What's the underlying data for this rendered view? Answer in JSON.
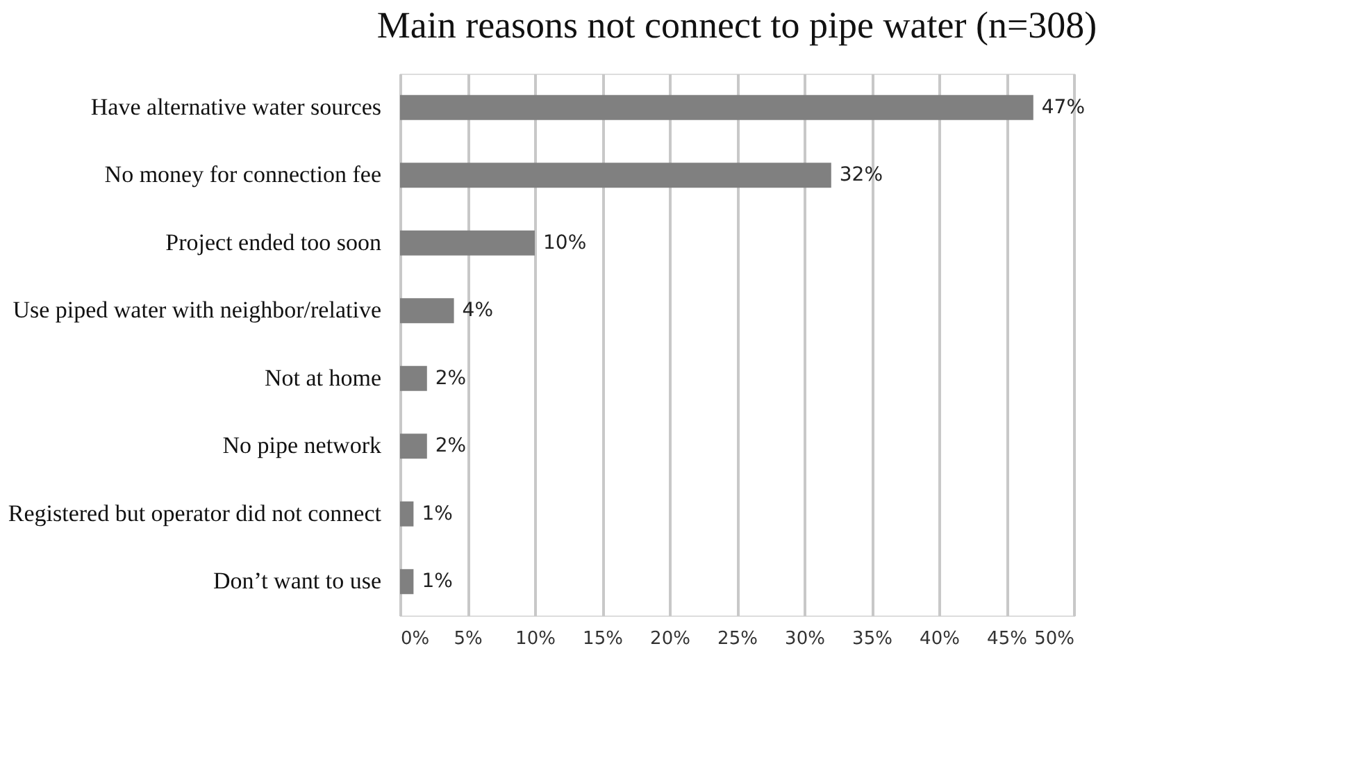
{
  "chart_data": {
    "type": "bar",
    "orientation": "horizontal",
    "title": "Main reasons not connect to pipe water (n=308)",
    "categories": [
      "Have alternative water sources",
      "No money for connection fee",
      "Project ended too soon",
      "Use piped water with neighbor/relative",
      "Not at home",
      "No pipe network",
      "Registered but operator did not connect",
      "Don’t want to use"
    ],
    "values": [
      47,
      32,
      10,
      4,
      2,
      2,
      1,
      1
    ],
    "value_labels": [
      "47%",
      "32%",
      "10%",
      "4%",
      "2%",
      "2%",
      "1%",
      "1%"
    ],
    "color": "#808080",
    "xlim": [
      0,
      50
    ],
    "xticks": [
      {
        "value": 0,
        "label": "0%"
      },
      {
        "value": 5,
        "label": "5%"
      },
      {
        "value": 10,
        "label": "10%"
      },
      {
        "value": 15,
        "label": "15%"
      },
      {
        "value": 20,
        "label": "20%"
      },
      {
        "value": 25,
        "label": "25%"
      },
      {
        "value": 30,
        "label": "30%"
      },
      {
        "value": 35,
        "label": "35%"
      },
      {
        "value": 40,
        "label": "40%"
      },
      {
        "value": 45,
        "label": "45%"
      },
      {
        "value": 50,
        "label": "50%"
      }
    ],
    "grid": "x"
  }
}
